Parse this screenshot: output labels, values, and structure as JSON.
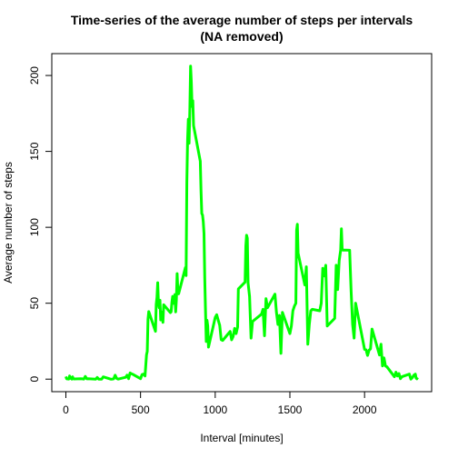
{
  "chart_data": {
    "type": "line",
    "title": [
      "Time-series of the average number of steps per intervals",
      "(NA removed)"
    ],
    "x_label": "Interval [minutes]",
    "y_label": "Average number of steps",
    "x": [
      0,
      5,
      10,
      15,
      20,
      25,
      30,
      35,
      40,
      45,
      50,
      55,
      100,
      110,
      120,
      130,
      140,
      150,
      200,
      210,
      220,
      230,
      240,
      250,
      300,
      310,
      320,
      330,
      340,
      350,
      400,
      410,
      420,
      430,
      440,
      450,
      500,
      510,
      520,
      530,
      540,
      545,
      550,
      555,
      600,
      605,
      610,
      615,
      620,
      625,
      630,
      635,
      640,
      645,
      650,
      655,
      700,
      705,
      710,
      715,
      720,
      725,
      730,
      735,
      740,
      745,
      750,
      755,
      800,
      805,
      810,
      815,
      820,
      825,
      830,
      835,
      840,
      845,
      850,
      855,
      900,
      905,
      910,
      915,
      920,
      925,
      930,
      935,
      940,
      945,
      950,
      955,
      1000,
      1010,
      1020,
      1030,
      1040,
      1050,
      1100,
      1110,
      1120,
      1130,
      1140,
      1150,
      1155,
      1200,
      1205,
      1210,
      1215,
      1220,
      1230,
      1240,
      1250,
      1300,
      1310,
      1320,
      1330,
      1340,
      1350,
      1400,
      1410,
      1420,
      1430,
      1440,
      1450,
      1500,
      1510,
      1520,
      1530,
      1540,
      1545,
      1550,
      1555,
      1600,
      1610,
      1620,
      1630,
      1640,
      1650,
      1700,
      1710,
      1720,
      1730,
      1740,
      1750,
      1800,
      1810,
      1820,
      1830,
      1840,
      1845,
      1850,
      1855,
      1900,
      1910,
      1920,
      1930,
      1940,
      1950,
      2000,
      2010,
      2020,
      2030,
      2040,
      2050,
      2100,
      2110,
      2120,
      2130,
      2140,
      2150,
      2200,
      2210,
      2220,
      2230,
      2240,
      2250,
      2300,
      2310,
      2320,
      2330,
      2340,
      2345,
      2350,
      2355
    ],
    "series": [
      {
        "name": "Average number of steps",
        "color": "#00ff00",
        "values": [
          1.7,
          0.3,
          0.1,
          0.15,
          0.08,
          2.1,
          0.5,
          0.9,
          0,
          1.5,
          0.3,
          0.1,
          0.3,
          0.2,
          0,
          1.8,
          0.2,
          0.3,
          0,
          1.1,
          0,
          0,
          0,
          1.5,
          0,
          0,
          0.2,
          2.6,
          0.5,
          0,
          1.2,
          2.6,
          0.3,
          4.1,
          3.5,
          3.1,
          0.3,
          3.0,
          3.3,
          2.1,
          16,
          18.3,
          39.5,
          44.5,
          31.5,
          49.3,
          53.8,
          63.5,
          50,
          47,
          52,
          39,
          44,
          44.2,
          37.4,
          49,
          43.8,
          44.4,
          50.5,
          54.5,
          49.9,
          51,
          55.7,
          44.3,
          52.3,
          69.5,
          57.8,
          56.2,
          73.4,
          68.2,
          129.4,
          157.5,
          171.2,
          155.4,
          177.3,
          206.2,
          195.9,
          179.6,
          183.4,
          167,
          143.5,
          124,
          109.1,
          108.1,
          103.7,
          95.9,
          66.2,
          45.2,
          24.8,
          38.8,
          35,
          21.1,
          40.6,
          42.4,
          38.9,
          35.5,
          26,
          25.5,
          31.4,
          25.9,
          28.1,
          33.4,
          30,
          34.4,
          59.4,
          63.9,
          87.7,
          94.8,
          92.8,
          63.4,
          54.5,
          27,
          38,
          42,
          42.8,
          46,
          28.6,
          53,
          47,
          56,
          44,
          36,
          42,
          17,
          44,
          30,
          35,
          45,
          48,
          50,
          98,
          102,
          83,
          62,
          74,
          23,
          36,
          45,
          46,
          45,
          50,
          73,
          68,
          75,
          35,
          40,
          75,
          59,
          78,
          85,
          99,
          86,
          85,
          84.9,
          58,
          36,
          27,
          50,
          45,
          19.6,
          19.3,
          15.6,
          19,
          20,
          33,
          15.9,
          23,
          8.7,
          14,
          8.7,
          8.1,
          1.6,
          4.6,
          2.1,
          3.7,
          0.3,
          1.6,
          3.3,
          0,
          1,
          2.6,
          3.3,
          0.7,
          0.2,
          1.1
        ]
      }
    ],
    "xlim": [
      -94.2,
      2449.2
    ],
    "ylim": [
      -8.25,
      214.4
    ],
    "xticks": [
      0,
      500,
      1000,
      1500,
      2000
    ],
    "yticks": [
      0,
      50,
      100,
      150,
      200
    ]
  }
}
